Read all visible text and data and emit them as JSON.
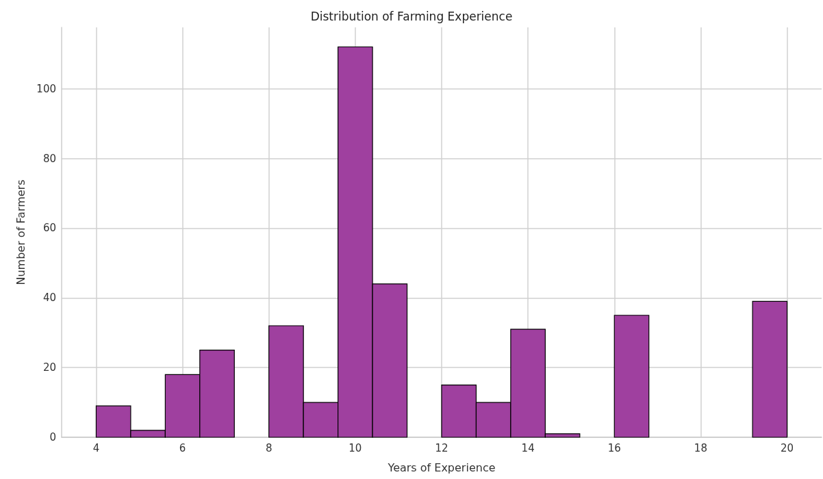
{
  "chart_data": {
    "type": "histogram",
    "title": "Distribution of Farming Experience",
    "xlabel": "Years of Experience",
    "ylabel": "Number of Farmers",
    "bins": [
      4,
      4.8,
      5.6,
      6.4,
      7.2,
      8,
      8.8,
      9.6,
      10.4,
      11.2,
      12,
      12.8,
      13.6,
      14.4,
      15.2,
      16,
      16.8,
      17.6,
      18.4,
      19.2,
      20
    ],
    "values": [
      9,
      2,
      18,
      25,
      0,
      32,
      10,
      112,
      44,
      0,
      15,
      10,
      31,
      1,
      0,
      35,
      0,
      0,
      0,
      39
    ],
    "color": "#9f409f",
    "xlim": [
      3.2,
      20.8
    ],
    "xticks": [
      4,
      6,
      8,
      10,
      12,
      14,
      16,
      18,
      20
    ],
    "ylim": [
      0,
      117.6
    ],
    "yticks": [
      0,
      20,
      40,
      60,
      80,
      100
    ],
    "grid": true
  }
}
